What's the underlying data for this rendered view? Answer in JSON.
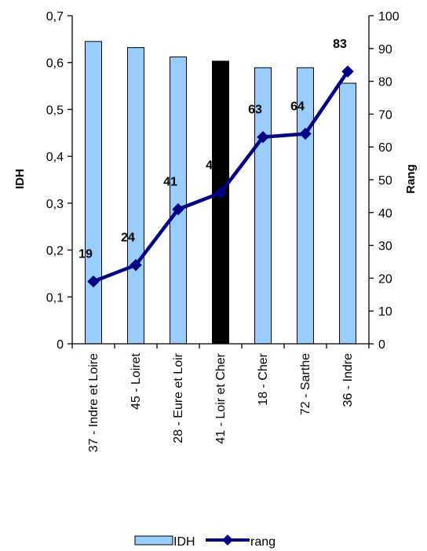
{
  "chart_data": {
    "type": "bar",
    "categories": [
      "37 - Indre et Loire",
      "45 - Loiret",
      "28 - Eure et Loir",
      "41 - Loir et Cher",
      "18 - Cher",
      "72 - Sarthe",
      "36 - Indre"
    ],
    "series": [
      {
        "name": "IDH",
        "type": "bar",
        "axis": "left",
        "values": [
          0.645,
          0.632,
          0.612,
          0.603,
          0.589,
          0.589,
          0.556
        ],
        "color": "#99ccff",
        "highlight_index": 3,
        "highlight_color": "#000000"
      },
      {
        "name": "rang",
        "type": "line",
        "axis": "right",
        "values": [
          19,
          24,
          41,
          46,
          63,
          64,
          83
        ],
        "data_labels": [
          "19",
          "24",
          "41",
          "46",
          "63",
          "64",
          "83"
        ],
        "color": "#000080"
      }
    ],
    "ylabel": "IDH",
    "y2label": "Rang",
    "ylim": [
      0,
      0.7
    ],
    "y2lim": [
      0,
      100
    ],
    "yticks": [
      "0",
      "0,1",
      "0,2",
      "0,3",
      "0,4",
      "0,5",
      "0,6",
      "0,7"
    ],
    "y2ticks": [
      "0",
      "10",
      "20",
      "30",
      "40",
      "50",
      "60",
      "70",
      "80",
      "90",
      "100"
    ],
    "grid": false,
    "legend_position": "bottom"
  }
}
